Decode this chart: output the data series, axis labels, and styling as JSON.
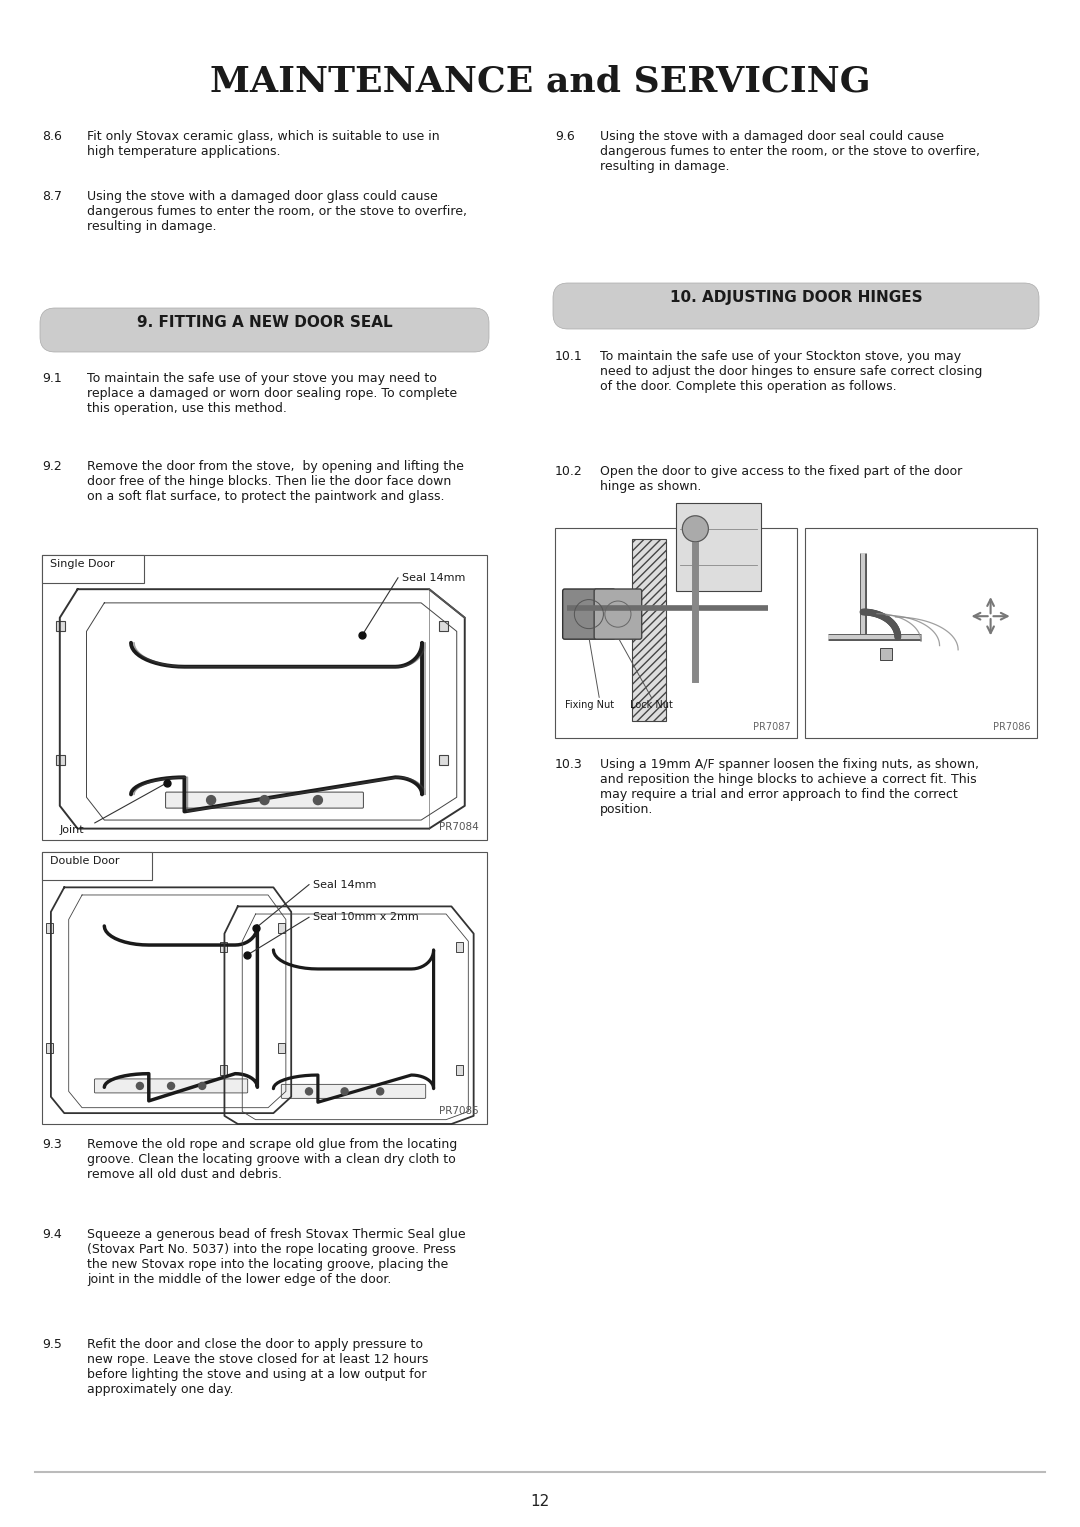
{
  "title": "MAINTENANCE and SERVICING",
  "bg_color": "#ffffff",
  "page_number": "12",
  "section9_header": "9. FITTING A NEW DOOR SEAL",
  "section10_header": "10. ADJUSTING DOOR HINGES",
  "items_left": [
    {
      "num": "8.6",
      "text": "Fit only Stovax ceramic glass, which is suitable to use in\nhigh temperature applications."
    },
    {
      "num": "8.7",
      "text": "Using the stove with a damaged door glass could cause\ndangerous fumes to enter the room, or the stove to overfire,\nresulting in damage."
    },
    {
      "num": "9.1",
      "text": "To maintain the safe use of your stove you may need to\nreplace a damaged or worn door sealing rope. To complete\nthis operation, use this method."
    },
    {
      "num": "9.2",
      "text": "Remove the door from the stove,  by opening and lifting the\ndoor free of the hinge blocks. Then lie the door face down\non a soft flat surface, to protect the paintwork and glass."
    },
    {
      "num": "9.3",
      "text": "Remove the old rope and scrape old glue from the locating\ngroove. Clean the locating groove with a clean dry cloth to\nremove all old dust and debris."
    },
    {
      "num": "9.4",
      "text": "Squeeze a generous bead of fresh Stovax Thermic Seal glue\n(Stovax Part No. 5037) into the rope locating groove. Press\nthe new Stovax rope into the locating groove, placing the\njoint in the middle of the lower edge of the door."
    },
    {
      "num": "9.5",
      "text": "Refit the door and close the door to apply pressure to\nnew rope. Leave the stove closed for at least 12 hours\nbefore lighting the stove and using at a low output for\napproximately one day."
    }
  ],
  "items_right": [
    {
      "num": "9.6",
      "text": "Using the stove with a damaged door seal could cause\ndangerous fumes to enter the room, or the stove to overfire,\nresulting in damage."
    },
    {
      "num": "10.1",
      "text": "To maintain the safe use of your Stockton stove, you may\nneed to adjust the door hinges to ensure safe correct closing\nof the door. Complete this operation as follows."
    },
    {
      "num": "10.2",
      "text": "Open the door to give access to the fixed part of the door\nhinge as shown."
    },
    {
      "num": "10.3",
      "text": "Using a 19mm A/F spanner loosen the fixing nuts, as shown,\nand reposition the hinge blocks to achieve a correct fit. This\nmay require a trial and error approach to find the correct\nposition."
    }
  ],
  "single_door_label": "Single Door",
  "double_door_label": "Double Door",
  "seal_14mm_label": "Seal 14mm",
  "seal_14mm_label2": "Seal 14mm",
  "seal_10mm_label": "Seal 10mm x 2mm",
  "joint_label": "Joint",
  "pr7084": "PR7084",
  "pr7085": "PR7085",
  "pr7087": "PR7087",
  "pr7086": "PR7086",
  "fixing_nut_label": "Fixing Nut",
  "lock_nut_label": "Lock Nut",
  "header_bg": "#cccccc",
  "text_color": "#1a1a1a",
  "font_size_title": 26,
  "font_size_section": 11,
  "font_size_body": 9.0,
  "font_size_small": 7.5
}
